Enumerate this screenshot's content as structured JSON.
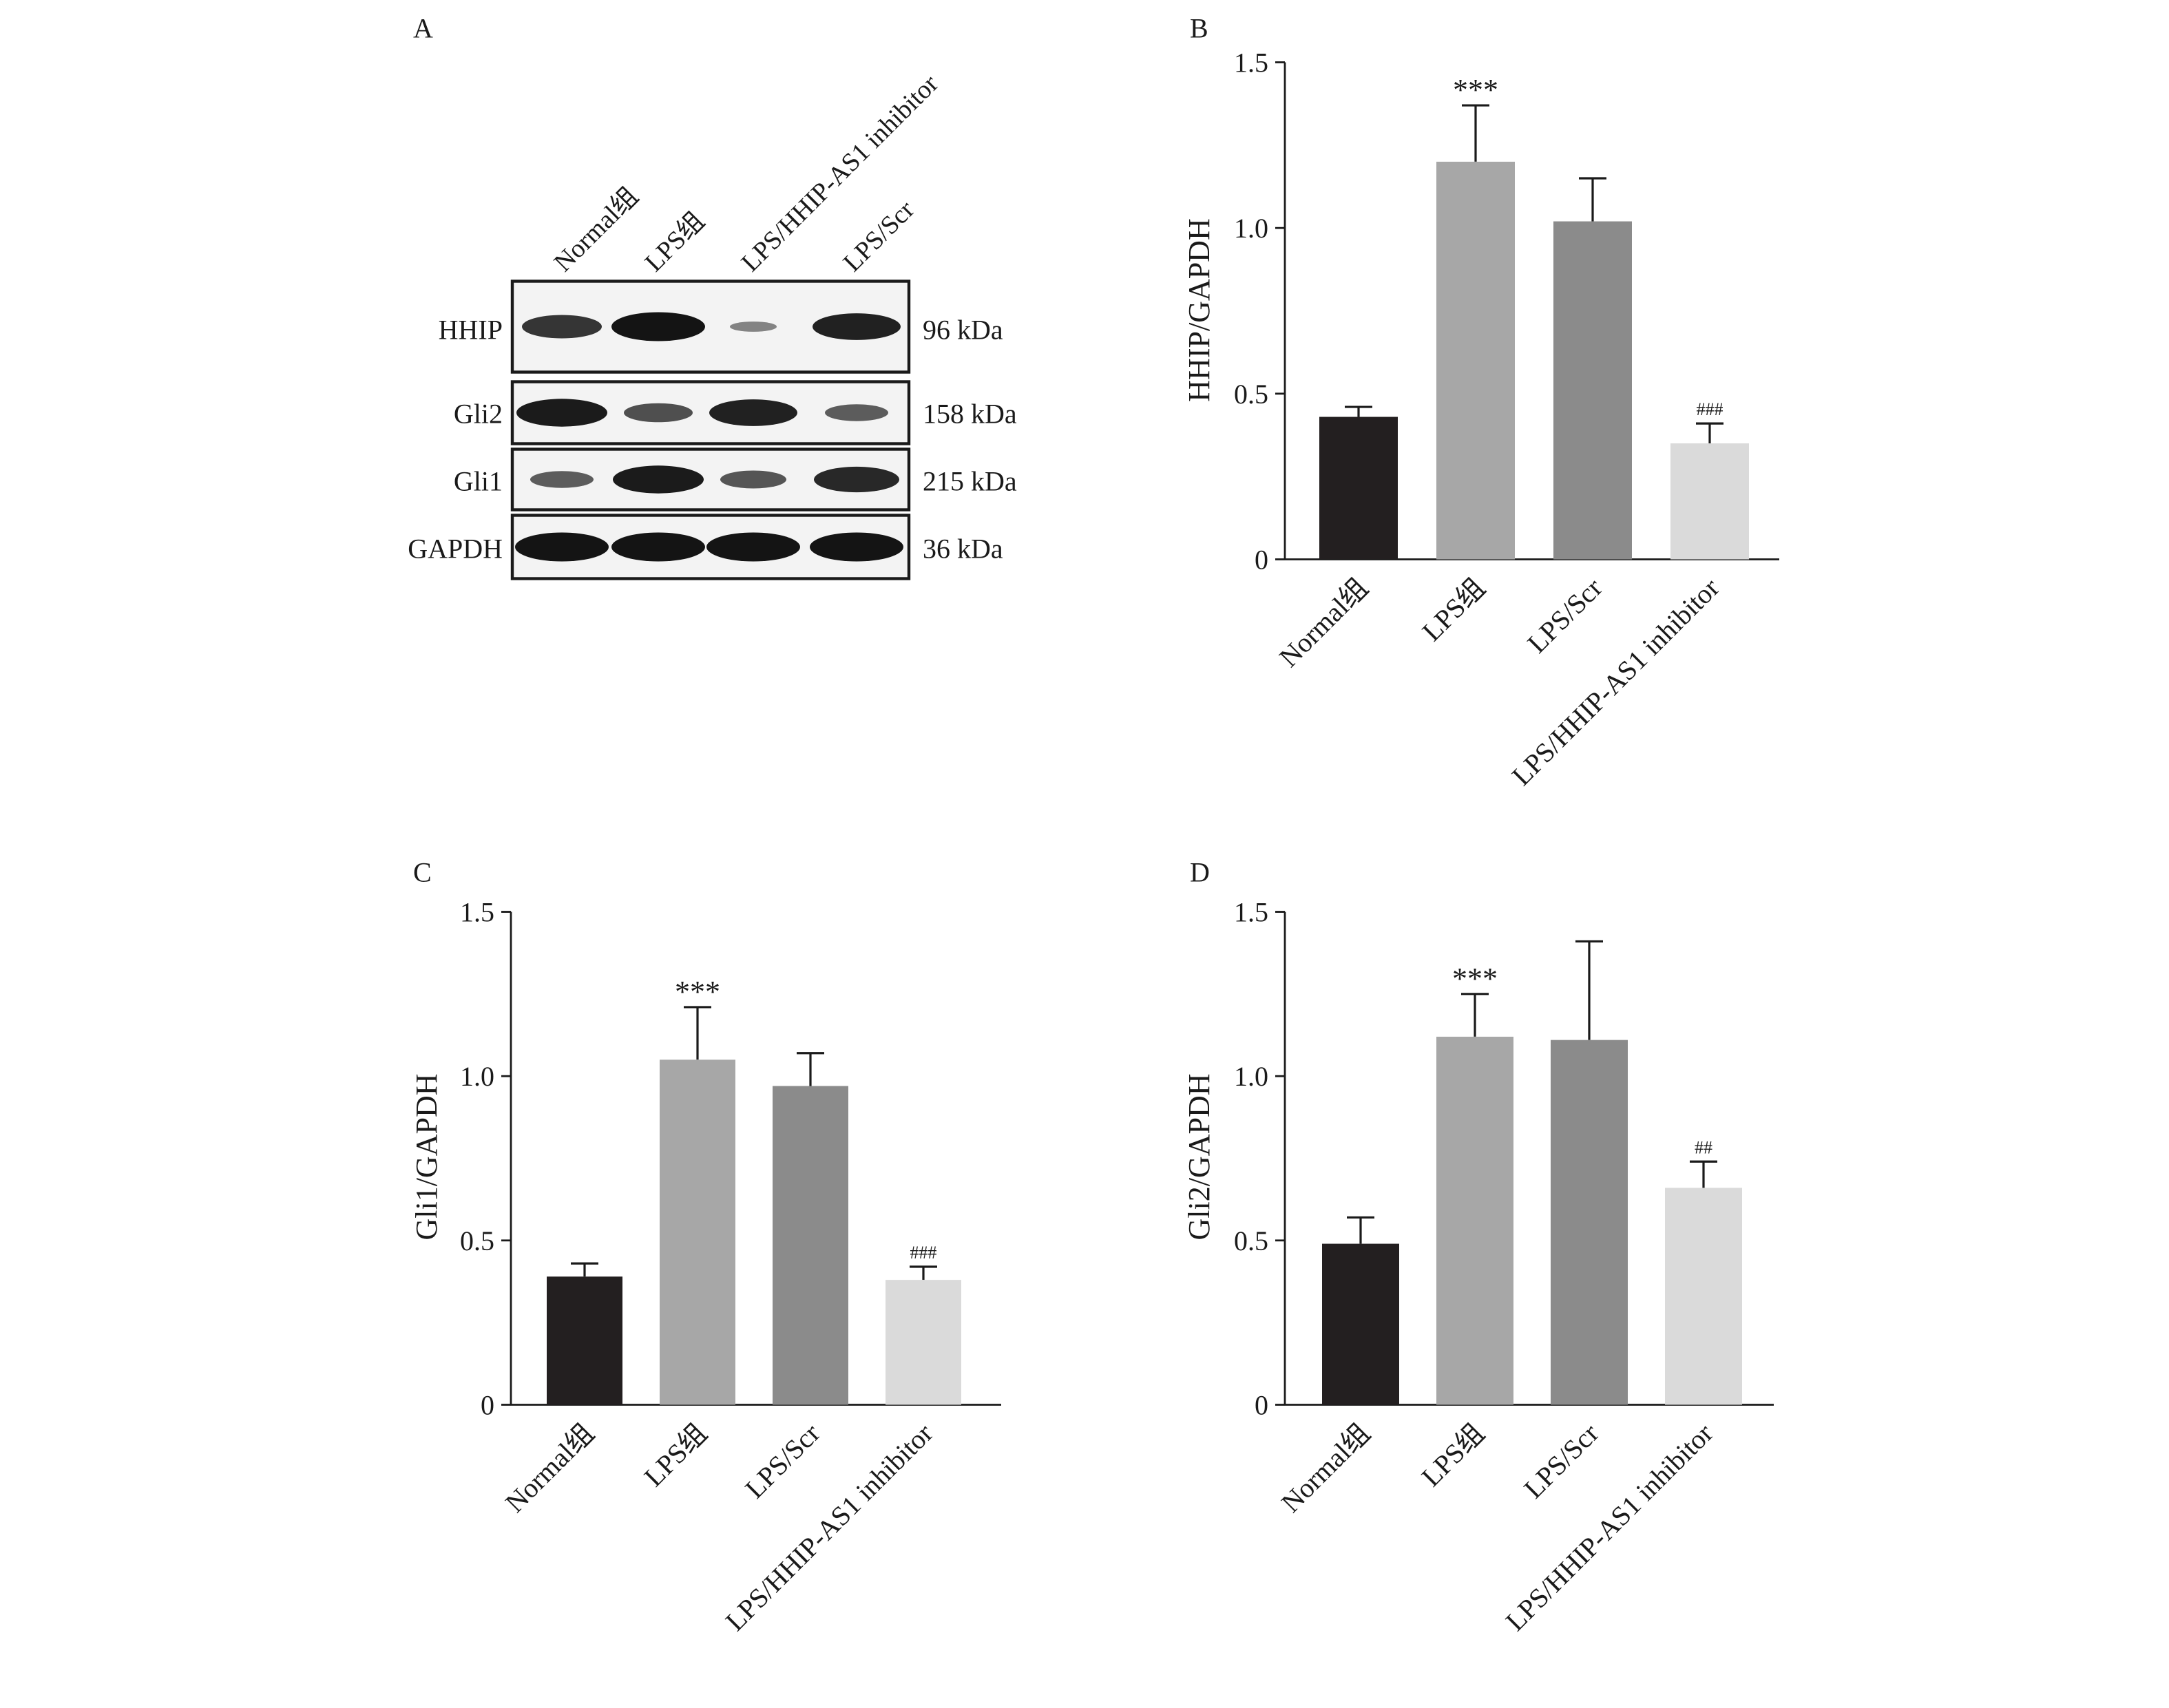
{
  "figure": {
    "panels": [
      {
        "letter": "A"
      },
      {
        "letter": "B"
      },
      {
        "letter": "C"
      },
      {
        "letter": "D"
      }
    ]
  },
  "blot": {
    "lanes": [
      "Normal组",
      "LPS组",
      "LPS/HHIP-AS1 inhibitor",
      "LPS/Scr"
    ],
    "rows": [
      {
        "protein": "HHIP",
        "size": "96 kDa",
        "intensity": [
          0.75,
          1.0,
          0.15,
          0.9
        ]
      },
      {
        "protein": "Gli2",
        "size": "158 kDa",
        "intensity": [
          0.95,
          0.55,
          0.9,
          0.45
        ]
      },
      {
        "protein": "Gli1",
        "size": "215 kDa",
        "intensity": [
          0.45,
          0.95,
          0.5,
          0.85
        ]
      },
      {
        "protein": "GAPDH",
        "size": "36 kDa",
        "intensity": [
          1.0,
          1.0,
          1.0,
          1.0
        ]
      }
    ]
  },
  "chart_data": [
    {
      "type": "bar",
      "panel": "B",
      "categories": [
        "Normal组",
        "LPS组",
        "LPS/Scr",
        "LPS/HHIP-AS1 inhibitor"
      ],
      "values": [
        0.43,
        1.2,
        1.02,
        0.35
      ],
      "errors": [
        0.03,
        0.17,
        0.13,
        0.06
      ],
      "annotations": [
        "",
        "***",
        "",
        "###"
      ],
      "ylabel": "HHIP/GAPDH",
      "ylim": [
        0,
        1.5
      ],
      "yticks": [
        "0",
        "0.5",
        "1.0",
        "1.5"
      ],
      "colors": [
        "#231f20",
        "#a7a7a7",
        "#8b8b8b",
        "#dadada"
      ]
    },
    {
      "type": "bar",
      "panel": "C",
      "categories": [
        "Normal组",
        "LPS组",
        "LPS/Scr",
        "LPS/HHIP-AS1 inhibitor"
      ],
      "values": [
        0.39,
        1.05,
        0.97,
        0.38
      ],
      "errors": [
        0.04,
        0.16,
        0.1,
        0.04
      ],
      "annotations": [
        "",
        "***",
        "",
        "###"
      ],
      "ylabel": "Gli1/GAPDH",
      "ylim": [
        0,
        1.5
      ],
      "yticks": [
        "0",
        "0.5",
        "1.0",
        "1.5"
      ],
      "colors": [
        "#231f20",
        "#a7a7a7",
        "#8b8b8b",
        "#dadada"
      ]
    },
    {
      "type": "bar",
      "panel": "D",
      "categories": [
        "Normal组",
        "LPS组",
        "LPS/Scr",
        "LPS/HHIP-AS1 inhibitor"
      ],
      "values": [
        0.49,
        1.12,
        1.11,
        0.66
      ],
      "errors": [
        0.08,
        0.13,
        0.3,
        0.08
      ],
      "annotations": [
        "",
        "***",
        "",
        "##"
      ],
      "ylabel": "Gli2/GAPDH",
      "ylim": [
        0,
        1.5
      ],
      "yticks": [
        "0",
        "0.5",
        "1.0",
        "1.5"
      ],
      "colors": [
        "#231f20",
        "#a7a7a7",
        "#8b8b8b",
        "#dadada"
      ]
    }
  ]
}
